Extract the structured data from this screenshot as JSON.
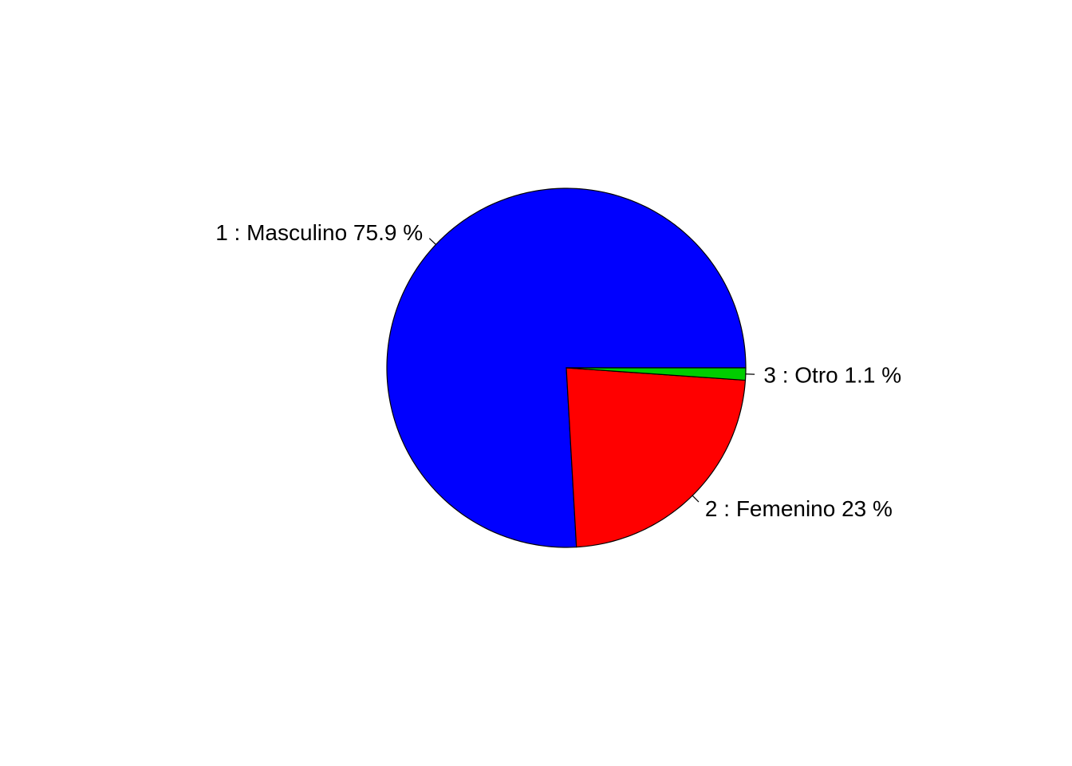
{
  "chart_data": {
    "type": "pie",
    "slices": [
      {
        "label": "1 : Masculino 75.9 %",
        "value": 75.9,
        "color": "#0000FF"
      },
      {
        "label": "2 : Femenino 23 %",
        "value": 23.0,
        "color": "#FF0000"
      },
      {
        "label": "3 : Otro 1.1 %",
        "value": 1.1,
        "color": "#00CD00"
      }
    ],
    "direction": "counter-clockwise",
    "start_angle_deg": 0,
    "legend": "none"
  }
}
